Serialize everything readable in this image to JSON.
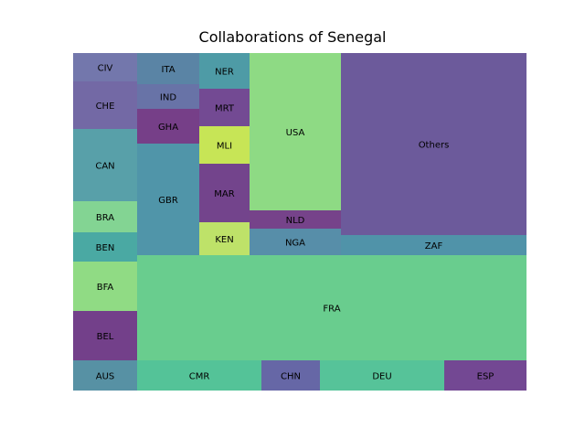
{
  "chart_data": {
    "type": "treemap",
    "title": "Collaborations of Senegal",
    "cells": [
      {
        "label": "CIV",
        "color": "#5b5f9e"
      },
      {
        "label": "CHE",
        "color": "#5b4f95"
      },
      {
        "label": "CAN",
        "color": "#3b8f9a"
      },
      {
        "label": "BRA",
        "color": "#6dcc80"
      },
      {
        "label": "BEN",
        "color": "#2a9a93"
      },
      {
        "label": "BFA",
        "color": "#7dd56f"
      },
      {
        "label": "BEL",
        "color": "#5a1f75"
      },
      {
        "label": "AUS",
        "color": "#3a7e94"
      },
      {
        "label": "ITA",
        "color": "#3d6f95"
      },
      {
        "label": "IND",
        "color": "#4d5a98"
      },
      {
        "label": "GHA",
        "color": "#5e1d73"
      },
      {
        "label": "GBR",
        "color": "#31839a"
      },
      {
        "label": "NER",
        "color": "#2f8a97"
      },
      {
        "label": "MRT",
        "color": "#5a2a80"
      },
      {
        "label": "MLI",
        "color": "#bde138"
      },
      {
        "label": "MAR",
        "color": "#5b2378"
      },
      {
        "label": "KEN",
        "color": "#b3dd4f"
      },
      {
        "label": "USA",
        "color": "#7ad36e"
      },
      {
        "label": "NLD",
        "color": "#5e2275"
      },
      {
        "label": "NGA",
        "color": "#3a7a9a"
      },
      {
        "label": "Others",
        "color": "#523d8a"
      },
      {
        "label": "ZAF",
        "color": "#31809a"
      },
      {
        "label": "FRA",
        "color": "#4fc47a"
      },
      {
        "label": "CMR",
        "color": "#36b886"
      },
      {
        "label": "CHN",
        "color": "#4b4c96"
      },
      {
        "label": "DEU",
        "color": "#38b987"
      },
      {
        "label": "ESP",
        "color": "#5b2880"
      }
    ]
  }
}
